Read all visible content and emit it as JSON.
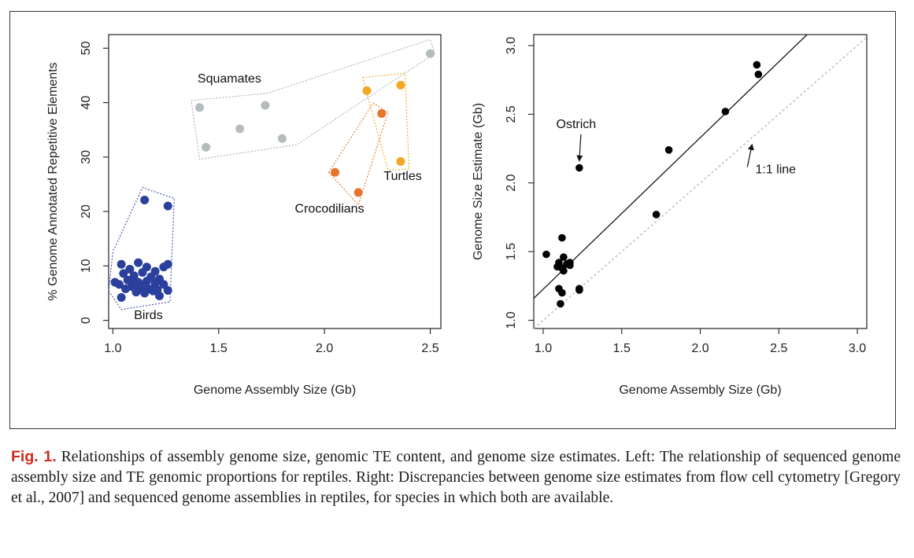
{
  "caption": {
    "label": "Fig. 1.",
    "text": "Relationships of assembly genome size, genomic TE content, and genome size estimates. Left: The relationship of sequenced genome assembly size and TE genomic proportions for reptiles. Right: Discrepancies between genome size estimates from flow cell cytometry [Gregory et al., 2007] and sequenced genome assemblies in reptiles, for species in which both are available."
  },
  "colors": {
    "birds": "#2b3f9c",
    "squamates": "#b4bcbe",
    "crocodilians": "#e8742c",
    "turtles": "#f2a823",
    "right_points": "#000000",
    "hull_birds": "#3f4fb0",
    "hull_squamates": "#a9b1b3",
    "hull_crocodilians": "#e8742c",
    "hull_turtles": "#f2a823"
  },
  "chart_data": [
    {
      "type": "scatter",
      "title": "",
      "xlabel": "Genome Assembly Size (Gb)",
      "ylabel": "% Genome Annotated Repetitive Elements",
      "xlim": [
        0.98,
        2.55
      ],
      "ylim": [
        -1.5,
        52.5
      ],
      "xticks": [
        "1.0",
        "1.5",
        "2.0",
        "2.5"
      ],
      "yticks": [
        "0",
        "10",
        "20",
        "30",
        "40",
        "50"
      ],
      "grid": false,
      "series": [
        {
          "name": "Birds",
          "color_key": "birds",
          "points": [
            [
              1.04,
              10.3
            ],
            [
              1.08,
              9.4
            ],
            [
              1.12,
              10.6
            ],
            [
              1.16,
              9.8
            ],
            [
              1.2,
              9.0
            ],
            [
              1.05,
              8.6
            ],
            [
              1.1,
              8.2
            ],
            [
              1.14,
              8.8
            ],
            [
              1.18,
              8.0
            ],
            [
              1.22,
              7.6
            ],
            [
              1.07,
              7.4
            ],
            [
              1.12,
              7.0
            ],
            [
              1.16,
              7.2
            ],
            [
              1.2,
              6.8
            ],
            [
              1.24,
              6.6
            ],
            [
              1.03,
              6.6
            ],
            [
              1.09,
              6.2
            ],
            [
              1.13,
              6.0
            ],
            [
              1.17,
              5.8
            ],
            [
              1.21,
              5.6
            ],
            [
              1.06,
              5.8
            ],
            [
              1.11,
              5.2
            ],
            [
              1.15,
              5.0
            ],
            [
              1.19,
              5.4
            ],
            [
              1.26,
              5.5
            ],
            [
              1.04,
              4.2
            ],
            [
              1.22,
              4.5
            ],
            [
              1.01,
              7.0
            ],
            [
              1.24,
              9.8
            ],
            [
              1.26,
              10.3
            ],
            [
              1.1,
              6.8
            ],
            [
              1.14,
              6.4
            ],
            [
              1.15,
              22.1
            ],
            [
              1.26,
              21.0
            ]
          ]
        },
        {
          "name": "Squamates",
          "color_key": "squamates",
          "points": [
            [
              1.41,
              39.1
            ],
            [
              1.44,
              31.8
            ],
            [
              1.6,
              35.2
            ],
            [
              1.72,
              39.5
            ],
            [
              1.8,
              33.4
            ],
            [
              2.5,
              49.0
            ]
          ]
        },
        {
          "name": "Crocodilians",
          "color_key": "crocodilians",
          "points": [
            [
              2.05,
              27.2
            ],
            [
              2.16,
              23.5
            ],
            [
              2.27,
              38.0
            ]
          ]
        },
        {
          "name": "Turtles",
          "color_key": "turtles",
          "points": [
            [
              2.2,
              42.2
            ],
            [
              2.36,
              43.2
            ],
            [
              2.36,
              29.2
            ]
          ]
        }
      ],
      "hulls": [
        {
          "name": "Birds",
          "points": [
            [
              0.98,
              5.4
            ],
            [
              1.04,
              2.0
            ],
            [
              1.27,
              3.4
            ],
            [
              1.29,
              22.4
            ],
            [
              1.14,
              24.4
            ],
            [
              1.0,
              12.6
            ]
          ]
        },
        {
          "name": "Squamates",
          "points": [
            [
              1.37,
              40.4
            ],
            [
              1.73,
              41.7
            ],
            [
              2.5,
              51.6
            ],
            [
              2.52,
              49.0
            ],
            [
              1.87,
              32.3
            ],
            [
              1.41,
              29.6
            ]
          ]
        },
        {
          "name": "Crocodilians",
          "points": [
            [
              2.02,
              27.2
            ],
            [
              2.23,
              39.9
            ],
            [
              2.3,
              38.2
            ],
            [
              2.16,
              21.2
            ]
          ]
        },
        {
          "name": "Turtles",
          "points": [
            [
              2.18,
              44.6
            ],
            [
              2.38,
              45.4
            ],
            [
              2.4,
              27.8
            ],
            [
              2.3,
              27.6
            ]
          ]
        }
      ],
      "annotations": [
        {
          "text": "Squamates",
          "x": 1.4,
          "y": 43.7
        },
        {
          "text": "Turtles",
          "x": 2.28,
          "y": 25.8
        },
        {
          "text": "Crocodilians",
          "x": 1.86,
          "y": 19.8
        },
        {
          "text": "Birds",
          "x": 1.1,
          "y": 0.2
        }
      ]
    },
    {
      "type": "scatter",
      "title": "",
      "xlabel": "Genome Assembly Size (Gb)",
      "ylabel": "Genome Size Estimate (Gb)",
      "xlim": [
        0.94,
        3.06
      ],
      "ylim": [
        0.94,
        3.08
      ],
      "xticks": [
        "1.0",
        "1.5",
        "2.0",
        "2.5",
        "3.0"
      ],
      "yticks": [
        "1.0",
        "1.5",
        "2.0",
        "2.5",
        "3.0"
      ],
      "grid": false,
      "series": [
        {
          "name": "",
          "color_key": "right_points",
          "points": [
            [
              1.02,
              1.48
            ],
            [
              1.09,
              1.39
            ],
            [
              1.1,
              1.42
            ],
            [
              1.12,
              1.6
            ],
            [
              1.13,
              1.46
            ],
            [
              1.12,
              1.38
            ],
            [
              1.13,
              1.36
            ],
            [
              1.15,
              1.41
            ],
            [
              1.17,
              1.42
            ],
            [
              1.17,
              1.4
            ],
            [
              1.1,
              1.23
            ],
            [
              1.12,
              1.2
            ],
            [
              1.11,
              1.12
            ],
            [
              1.23,
              1.23
            ],
            [
              1.23,
              1.22
            ],
            [
              1.23,
              2.11
            ],
            [
              1.72,
              1.77
            ],
            [
              1.8,
              2.24
            ],
            [
              2.16,
              2.52
            ],
            [
              2.36,
              2.86
            ],
            [
              2.37,
              2.79
            ]
          ]
        }
      ],
      "fit_line": {
        "x": [
          0.94,
          2.68
        ],
        "y": [
          1.16,
          3.08
        ]
      },
      "identity_line": {
        "x": [
          0.94,
          3.06
        ],
        "y": [
          0.94,
          3.06
        ]
      },
      "annotations": [
        {
          "text": "Ostrich",
          "x": 1.21,
          "y": 2.4,
          "arrow_to": [
            1.23,
            2.16
          ]
        },
        {
          "text": "1:1 line",
          "x": 2.48,
          "y": 2.07,
          "arrow_to": [
            2.33,
            2.28
          ]
        }
      ]
    }
  ]
}
